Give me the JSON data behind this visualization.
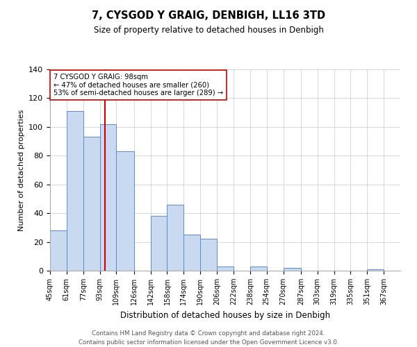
{
  "title": "7, CYSGOD Y GRAIG, DENBIGH, LL16 3TD",
  "subtitle": "Size of property relative to detached houses in Denbigh",
  "xlabel": "Distribution of detached houses by size in Denbigh",
  "ylabel": "Number of detached properties",
  "bin_labels": [
    "45sqm",
    "61sqm",
    "77sqm",
    "93sqm",
    "109sqm",
    "126sqm",
    "142sqm",
    "158sqm",
    "174sqm",
    "190sqm",
    "206sqm",
    "222sqm",
    "238sqm",
    "254sqm",
    "270sqm",
    "287sqm",
    "303sqm",
    "319sqm",
    "335sqm",
    "351sqm",
    "367sqm"
  ],
  "bin_edges": [
    45,
    61,
    77,
    93,
    109,
    126,
    142,
    158,
    174,
    190,
    206,
    222,
    238,
    254,
    270,
    287,
    303,
    319,
    335,
    351,
    367,
    383
  ],
  "values": [
    28,
    111,
    93,
    102,
    83,
    0,
    38,
    46,
    25,
    22,
    3,
    0,
    3,
    0,
    2,
    0,
    0,
    0,
    0,
    1,
    0
  ],
  "bar_color": "#c9d9f0",
  "bar_edge_color": "#5b8bc9",
  "red_line_x": 98,
  "annotation_line1": "7 CYSGOD Y GRAIG: 98sqm",
  "annotation_line2": "← 47% of detached houses are smaller (260)",
  "annotation_line3": "53% of semi-detached houses are larger (289) →",
  "annotation_box_color": "#ffffff",
  "annotation_box_edge": "#cc0000",
  "red_line_color": "#cc0000",
  "ylim": [
    0,
    140
  ],
  "yticks": [
    0,
    20,
    40,
    60,
    80,
    100,
    120,
    140
  ],
  "footer_line1": "Contains HM Land Registry data © Crown copyright and database right 2024.",
  "footer_line2": "Contains public sector information licensed under the Open Government Licence v3.0."
}
